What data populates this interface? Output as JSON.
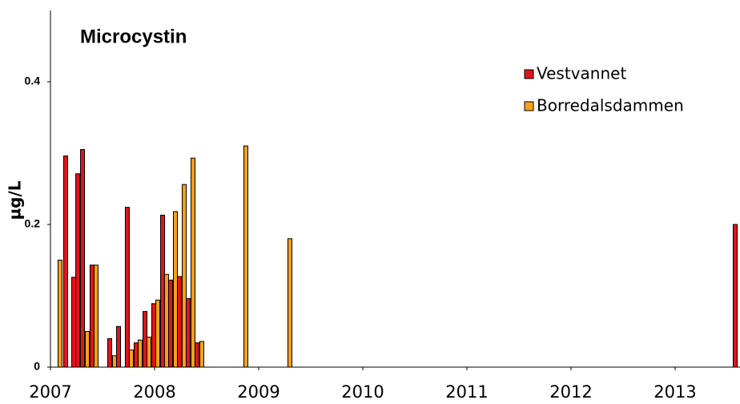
{
  "chart_data": {
    "type": "bar",
    "title": "Microcystin",
    "y_label": "µg/L",
    "xlim": [
      2007,
      2013.623
    ],
    "xticks": [
      2007,
      2008,
      2009,
      2010,
      2011,
      2012,
      2013
    ],
    "ylim": [
      0,
      0.5
    ],
    "yticks": [
      0,
      0.2,
      0.4
    ],
    "legend": "upper right",
    "series": [
      {
        "name": "Vestvannet",
        "color": "#e2141b",
        "x": [
          2007.146,
          2007.223,
          2007.262,
          2007.308,
          2007.4,
          2007.569,
          2007.654,
          2007.738,
          2007.823,
          2007.908,
          2007.992,
          2008.077,
          2008.154,
          2008.238,
          2008.323,
          2008.408,
          2013.577
        ],
        "values": [
          0.296,
          0.126,
          0.271,
          0.305,
          0.143,
          0.04,
          0.057,
          0.224,
          0.034,
          0.078,
          0.089,
          0.213,
          0.122,
          0.127,
          0.096,
          0.034,
          0.2
        ]
      },
      {
        "name": "Borredalsdammen",
        "color": "#f7a11a",
        "x": [
          2007.092,
          2007.354,
          2007.438,
          2007.615,
          2007.777,
          2007.862,
          2007.946,
          2008.031,
          2008.115,
          2008.2,
          2008.285,
          2008.369,
          2008.454,
          2008.877,
          2009.3
        ],
        "values": [
          0.15,
          0.05,
          0.143,
          0.016,
          0.024,
          0.038,
          0.042,
          0.094,
          0.13,
          0.218,
          0.256,
          0.293,
          0.036,
          0.31,
          0.18
        ]
      }
    ]
  }
}
